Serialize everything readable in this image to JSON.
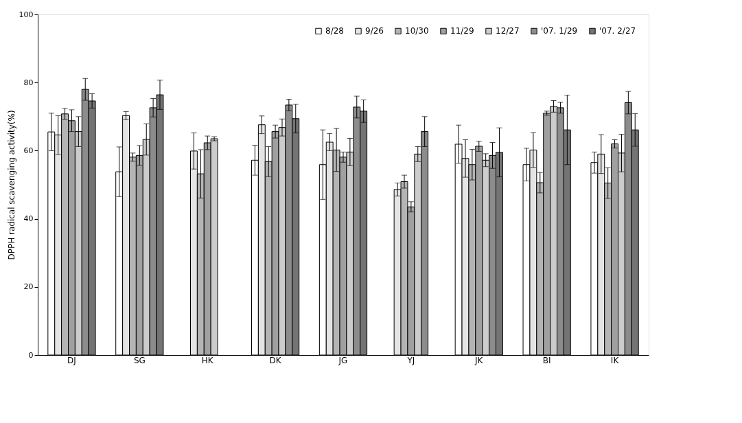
{
  "chart_data": {
    "type": "bar",
    "ylabel": "DPPH radical scavenging activity(%)",
    "categories": [
      "DJ",
      "SG",
      "HK",
      "DK",
      "JG",
      "YJ",
      "JK",
      "BI",
      "IK"
    ],
    "ylim": [
      0,
      100
    ],
    "yticks": [
      0,
      20,
      40,
      60,
      80,
      100
    ],
    "grid": false,
    "legend": "top right",
    "series": [
      {
        "name": "8/28",
        "color": "#ffffff",
        "values": [
          65.5,
          53.8,
          null,
          57.2,
          55.9,
          null,
          61.9,
          55.9,
          56.5
        ],
        "errors": [
          5.5,
          7.3,
          null,
          4.4,
          10.2,
          null,
          5.6,
          4.8,
          3.1
        ]
      },
      {
        "name": "9/26",
        "color": "#e4e4e4",
        "values": [
          64.6,
          70.3,
          59.9,
          67.6,
          62.5,
          48.6,
          57.7,
          60.2,
          59.0
        ],
        "errors": [
          5.7,
          1.2,
          5.3,
          2.6,
          2.5,
          1.9,
          5.5,
          5.1,
          5.7
        ]
      },
      {
        "name": "10/30",
        "color": "#b4b4b4",
        "values": [
          70.8,
          58.1,
          53.2,
          56.8,
          60.2,
          50.9,
          55.9,
          50.6,
          50.5
        ],
        "errors": [
          1.6,
          1.2,
          7.1,
          4.4,
          6.3,
          1.9,
          4.5,
          3.0,
          4.5
        ]
      },
      {
        "name": "11/29",
        "color": "#a0a0a0",
        "values": [
          68.8,
          58.6,
          62.3,
          65.6,
          58.1,
          43.5,
          61.3,
          71.0,
          62.0
        ],
        "errors": [
          3.2,
          2.9,
          2.0,
          1.9,
          1.5,
          1.5,
          1.5,
          0.6,
          1.2
        ]
      },
      {
        "name": "12/27",
        "color": "#cccccc",
        "values": [
          65.6,
          63.3,
          63.5,
          66.8,
          59.6,
          59.0,
          57.2,
          73.0,
          59.3
        ],
        "errors": [
          4.4,
          4.6,
          0.6,
          2.5,
          4.0,
          2.2,
          1.9,
          1.7,
          5.5
        ]
      },
      {
        "name": "'07. 1/29",
        "color": "#8c8c8c",
        "values": [
          78.0,
          72.6,
          null,
          73.4,
          72.8,
          65.6,
          58.6,
          72.6,
          74.1
        ],
        "errors": [
          3.2,
          2.7,
          null,
          1.7,
          3.2,
          4.4,
          3.8,
          1.6,
          3.3
        ]
      },
      {
        "name": "'07. 2/27",
        "color": "#747474",
        "values": [
          74.6,
          76.4,
          null,
          69.4,
          71.6,
          null,
          59.5,
          66.1,
          66.1
        ],
        "errors": [
          2.1,
          4.3,
          null,
          4.2,
          3.3,
          null,
          7.2,
          10.2,
          4.8
        ]
      }
    ]
  }
}
